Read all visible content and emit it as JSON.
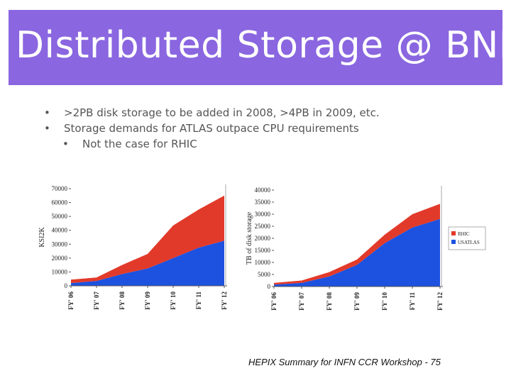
{
  "slide": {
    "title": "Distributed Storage @ BNL",
    "bullets": [
      {
        "text": "&gt;2PB disk storage to be added in 2008, &gt;4PB in 2009, etc.",
        "level": 1
      },
      {
        "text": "Storage demands for ATLAS outpace CPU requirements",
        "level": 1
      },
      {
        "text": "Not the case for RHIC",
        "level": 2
      }
    ],
    "bullet_glyph": "•",
    "footer": "HEPIX Summary for INFN CCR Workshop - 75"
  },
  "colors": {
    "title_bg": "#8a66e0",
    "rhic": "#e23a2a",
    "usatlas": "#1d52e0"
  },
  "chart_data": [
    {
      "type": "area",
      "stacked": true,
      "title": "",
      "ylabel": "KSI2K",
      "xlabel": "",
      "categories": [
        "FY' 06",
        "FY' 07",
        "FY' 08",
        "FY' 09",
        "FY' 10",
        "FY' 11",
        "FY' 12"
      ],
      "yticks": [
        0,
        10000,
        20000,
        30000,
        40000,
        50000,
        60000,
        70000
      ],
      "ylim": [
        0,
        70000
      ],
      "series": [
        {
          "name": "USATLAS",
          "color": "#1d52e0",
          "values": [
            2000,
            3500,
            8500,
            12500,
            20000,
            27500,
            32500
          ]
        },
        {
          "name": "RHIC",
          "color": "#e23a2a",
          "values": [
            2500,
            2500,
            6500,
            10500,
            23500,
            27500,
            32500
          ]
        }
      ],
      "legend": false,
      "grid": false
    },
    {
      "type": "area",
      "stacked": true,
      "title": "",
      "ylabel": "TB of disk storage",
      "xlabel": "",
      "categories": [
        "FY' 06",
        "FY' 07",
        "FY' 08",
        "FY' 09",
        "FY' 10",
        "FY' 11",
        "FY' 12"
      ],
      "yticks": [
        0,
        5000,
        10000,
        15000,
        20000,
        25000,
        30000,
        35000,
        40000
      ],
      "ylim": [
        0,
        40000
      ],
      "series": [
        {
          "name": "USATLAS",
          "color": "#1d52e0",
          "values": [
            800,
            1500,
            4200,
            9000,
            18000,
            24500,
            28000
          ]
        },
        {
          "name": "RHIC",
          "color": "#e23a2a",
          "values": [
            700,
            1000,
            1800,
            2200,
            3500,
            5500,
            6300
          ]
        }
      ],
      "legend": true,
      "legend_entries": [
        "RHIC",
        "USATLAS"
      ],
      "legend_position": "right",
      "grid": false
    }
  ]
}
